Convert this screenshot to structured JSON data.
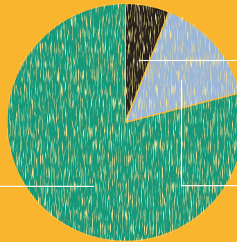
{
  "chart_data": {
    "type": "pie",
    "values": [
      6,
      15,
      79
    ],
    "colors": [
      "#2a201c",
      "#9cb6d6",
      "#17997a"
    ]
  }
}
